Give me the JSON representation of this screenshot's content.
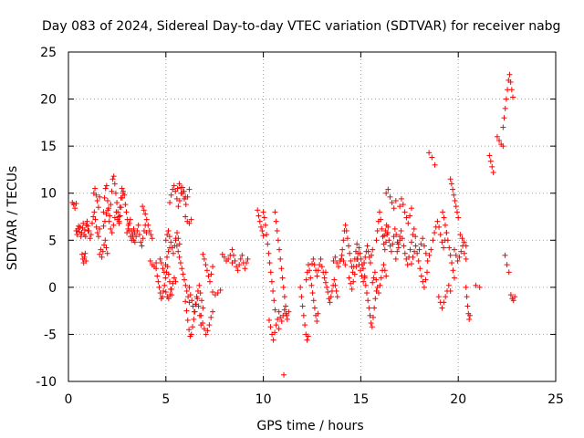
{
  "chart_data": {
    "type": "scatter",
    "title": "Day 083 of 2024, Sidereal Day-to-day VTEC variation (SDTVAR) for receiver nabg",
    "xlabel": "GPS time / hours",
    "ylabel": "SDTVAR / TECUs",
    "xlim": [
      0,
      25
    ],
    "ylim": [
      -10,
      25
    ],
    "xticks": [
      0,
      5,
      10,
      15,
      20,
      25
    ],
    "yticks": [
      -10,
      -5,
      0,
      5,
      10,
      15,
      20,
      25
    ],
    "grid": true,
    "marker": "+",
    "color": "#ff0000",
    "series": [
      {
        "name": "SDTVAR",
        "segments": [
          {
            "t0": 0.2,
            "t1": 0.4,
            "pts": [
              9.0,
              8.8,
              8.4,
              8.9
            ]
          },
          {
            "t0": 0.4,
            "t1": 1.0,
            "pts": [
              6.0,
              5.6,
              6.2,
              6.5,
              5.9,
              6.4,
              5.4,
              5.8,
              6.3,
              6.8,
              5.6,
              6.1,
              5.4,
              6.6,
              7.0,
              6.0
            ]
          },
          {
            "t0": 0.7,
            "t1": 0.9,
            "pts": [
              3.5,
              3.0,
              2.6,
              3.2,
              3.6,
              2.8
            ]
          },
          {
            "t0": 1.0,
            "t1": 1.6,
            "pts": [
              6.5,
              6.0,
              5.2,
              5.6,
              6.8,
              7.5,
              8.0,
              7.2,
              6.4,
              5.8,
              5.4,
              6.2
            ]
          },
          {
            "t0": 1.3,
            "t1": 1.6,
            "pts": [
              10.0,
              10.5,
              9.8,
              9.2,
              8.5,
              9.6
            ]
          },
          {
            "t0": 1.6,
            "t1": 2.0,
            "pts": [
              3.5,
              4.0,
              3.2,
              3.8,
              4.5,
              5.0,
              4.2,
              3.6
            ]
          },
          {
            "t0": 1.8,
            "t1": 2.8,
            "pts": [
              8.0,
              9.5,
              10.5,
              10.8,
              9.2,
              8.4,
              7.6,
              8.8,
              10.2,
              11.5,
              11.8,
              11.0,
              10.0,
              9.0,
              8.0,
              7.5,
              8.5,
              9.5,
              10.5,
              10.0
            ]
          },
          {
            "t0": 1.8,
            "t1": 2.6,
            "pts": [
              6.5,
              7.0,
              7.8,
              8.2,
              7.0,
              6.2,
              5.8,
              6.6,
              7.4,
              8.0,
              7.2,
              6.8
            ]
          },
          {
            "t0": 2.6,
            "t1": 3.4,
            "pts": [
              7.0,
              7.6,
              8.5,
              9.5,
              10.2,
              9.8,
              8.8,
              8.0,
              7.2,
              6.6,
              6.0,
              5.4,
              5.0,
              5.6,
              6.2,
              5.8
            ]
          },
          {
            "t0": 3.0,
            "t1": 4.0,
            "pts": [
              5.8,
              6.2,
              6.8,
              7.2,
              6.0,
              5.4,
              5.0,
              4.8,
              5.4,
              6.0,
              6.6,
              5.6,
              4.8,
              4.4,
              5.2,
              6.0,
              6.6,
              5.8
            ]
          },
          {
            "t0": 3.8,
            "t1": 4.3,
            "pts": [
              8.6,
              8.2,
              7.8,
              7.2,
              6.6,
              6.0,
              5.6,
              5.2
            ]
          },
          {
            "t0": 4.2,
            "t1": 4.5,
            "pts": [
              2.8,
              2.4,
              2.2,
              2.6
            ]
          },
          {
            "t0": 4.5,
            "t1": 5.3,
            "pts": [
              2.0,
              1.2,
              0.6,
              0.0,
              -0.6,
              -1.2,
              -1.0,
              -0.4,
              0.2,
              1.0,
              1.6,
              2.2,
              1.4,
              0.6,
              -0.2,
              -0.8
            ]
          },
          {
            "t0": 4.7,
            "t1": 5.2,
            "pts": [
              3.0,
              2.6,
              2.0,
              1.6,
              2.4,
              3.2,
              3.8,
              4.2
            ]
          },
          {
            "t0": 5.0,
            "t1": 5.7,
            "pts": [
              5.0,
              5.6,
              6.0,
              5.4,
              4.8,
              4.2,
              3.6,
              4.4,
              5.2,
              5.8,
              5.2,
              4.6
            ]
          },
          {
            "t0": 5.0,
            "t1": 5.5,
            "pts": [
              -0.5,
              -1.0,
              -1.2,
              -0.8,
              -0.2,
              0.4,
              1.0,
              0.6
            ]
          },
          {
            "t0": 5.2,
            "t1": 6.0,
            "pts": [
              9.0,
              9.8,
              10.4,
              10.8,
              10.2,
              9.4,
              8.6,
              9.2,
              10.0,
              10.6,
              10.2,
              9.6
            ]
          },
          {
            "t0": 5.5,
            "t1": 6.2,
            "pts": [
              5.0,
              4.4,
              3.8,
              3.2,
              2.6,
              2.0,
              1.4,
              0.8,
              0.2,
              -0.4,
              -1.0,
              -1.6
            ]
          },
          {
            "t0": 5.6,
            "t1": 6.2,
            "pts": [
              10.5,
              11.0,
              10.6,
              10.0,
              9.4,
              8.8,
              9.6,
              10.4
            ]
          },
          {
            "t0": 6.0,
            "t1": 6.3,
            "pts": [
              7.5,
              7.0,
              6.8,
              7.2
            ]
          },
          {
            "t0": 6.0,
            "t1": 6.8,
            "pts": [
              -1.5,
              -2.5,
              -3.5,
              -4.5,
              -5.2,
              -5.0,
              -4.2,
              -3.4,
              -2.6,
              -1.8,
              -1.2,
              -2.0,
              -3.0,
              -4.0
            ]
          },
          {
            "t0": 6.2,
            "t1": 6.9,
            "pts": [
              0.0,
              -0.8,
              -1.4,
              -2.0,
              -2.6,
              -1.8,
              -1.0,
              -0.4,
              0.2,
              -0.6,
              -1.4,
              -2.2
            ]
          },
          {
            "t0": 6.8,
            "t1": 7.4,
            "pts": [
              -3.0,
              -3.8,
              -4.4,
              -5.0,
              -4.6,
              -4.0,
              -3.2,
              -2.6
            ]
          },
          {
            "t0": 6.9,
            "t1": 7.4,
            "pts": [
              3.5,
              3.0,
              2.4,
              1.8,
              1.2,
              0.6,
              1.4,
              2.2
            ]
          },
          {
            "t0": 7.4,
            "t1": 7.8,
            "pts": [
              -0.5,
              -0.8,
              -0.6,
              -0.3
            ]
          },
          {
            "t0": 7.9,
            "t1": 8.4,
            "pts": [
              3.5,
              3.2,
              2.8,
              3.0,
              3.4,
              2.6
            ]
          },
          {
            "t0": 8.4,
            "t1": 9.2,
            "pts": [
              4.0,
              3.4,
              2.8,
              2.2,
              1.8,
              2.4,
              3.0,
              3.4,
              2.6,
              2.0,
              2.6,
              3.0
            ]
          },
          {
            "t0": 9.7,
            "t1": 10.0,
            "pts": [
              8.2,
              7.6,
              7.0,
              6.4,
              6.0,
              5.5
            ]
          },
          {
            "t0": 10.0,
            "t1": 10.6,
            "pts": [
              8.0,
              7.4,
              6.6,
              5.6,
              4.6,
              3.6,
              2.6,
              1.6,
              0.6,
              -0.4,
              -1.4,
              -2.4
            ]
          },
          {
            "t0": 10.3,
            "t1": 10.8,
            "pts": [
              -3.5,
              -4.2,
              -5.0,
              -5.6,
              -4.8,
              -4.0,
              -3.4,
              -4.4
            ]
          },
          {
            "t0": 10.6,
            "t1": 11.2,
            "pts": [
              8.0,
              7.0,
              6.0,
              5.0,
              4.0,
              3.0,
              2.0,
              1.0,
              0.0,
              -1.0,
              -2.0,
              -3.0
            ]
          },
          {
            "t0": 10.8,
            "t1": 11.3,
            "pts": [
              -2.6,
              -3.2,
              -3.6,
              -3.0,
              -2.4,
              -2.8,
              -3.4,
              -2.6
            ]
          },
          {
            "t0": 11.0,
            "t1": 11.1,
            "pts": [
              -9.3
            ]
          },
          {
            "t0": 11.9,
            "t1": 12.3,
            "pts": [
              0.0,
              -1.0,
              -2.0,
              -3.0,
              -4.0,
              -5.0,
              -5.6,
              -5.2
            ]
          },
          {
            "t0": 12.2,
            "t1": 12.8,
            "pts": [
              0.8,
              1.6,
              2.4,
              1.8,
              1.0,
              0.2,
              -0.6,
              -1.4,
              -2.2,
              -3.0,
              -3.6,
              -2.8
            ]
          },
          {
            "t0": 12.5,
            "t1": 13.2,
            "pts": [
              2.5,
              3.0,
              2.4,
              1.8,
              1.2,
              1.8,
              2.4,
              3.0,
              2.2,
              1.6,
              1.0,
              1.6
            ]
          },
          {
            "t0": 13.2,
            "t1": 13.8,
            "pts": [
              0.5,
              0.0,
              -0.5,
              -1.2,
              -1.6,
              -1.0,
              -0.4,
              0.2,
              0.8,
              0.2,
              -0.4,
              -1.0
            ]
          },
          {
            "t0": 13.6,
            "t1": 14.2,
            "pts": [
              2.8,
              3.2,
              2.6,
              2.2,
              2.8,
              3.4,
              2.8,
              2.4
            ]
          },
          {
            "t0": 14.0,
            "t1": 14.8,
            "pts": [
              3.0,
              4.0,
              5.0,
              6.0,
              6.6,
              6.0,
              5.2,
              4.4,
              3.6,
              2.8,
              2.2,
              1.6,
              2.2,
              3.0,
              3.8,
              4.6
            ]
          },
          {
            "t0": 14.4,
            "t1": 15.2,
            "pts": [
              1.0,
              0.4,
              -0.2,
              0.6,
              1.4,
              2.2,
              3.0,
              2.4,
              1.8,
              1.2,
              0.6,
              1.2
            ]
          },
          {
            "t0": 14.8,
            "t1": 15.6,
            "pts": [
              3.0,
              3.6,
              4.2,
              3.6,
              3.0,
              2.4,
              2.0,
              2.6,
              3.2,
              3.8,
              4.4,
              3.8,
              3.2,
              2.6,
              3.4,
              4.0
            ]
          },
          {
            "t0": 15.2,
            "t1": 15.8,
            "pts": [
              1.0,
              0.2,
              -0.6,
              -1.4,
              -2.2,
              -3.0,
              -3.8,
              -4.2,
              -3.2,
              -2.2,
              -1.2,
              -0.4
            ]
          },
          {
            "t0": 15.6,
            "t1": 16.3,
            "pts": [
              0.5,
              1.0,
              1.6,
              0.8,
              0.0,
              -0.6,
              0.2,
              1.0,
              1.8,
              2.4,
              1.8,
              1.2
            ]
          },
          {
            "t0": 15.8,
            "t1": 16.4,
            "pts": [
              5.0,
              6.0,
              7.0,
              8.0,
              7.2,
              6.2,
              5.4,
              4.6,
              4.0,
              4.8,
              5.6,
              6.4
            ]
          },
          {
            "t0": 16.2,
            "t1": 17.0,
            "pts": [
              5.5,
              6.0,
              6.6,
              5.8,
              5.0,
              4.4,
              3.8,
              4.6,
              5.4,
              6.2,
              5.6,
              4.8,
              4.2,
              5.0
            ]
          },
          {
            "t0": 16.3,
            "t1": 16.8,
            "pts": [
              10.0,
              10.4,
              9.6,
              9.0,
              8.4,
              9.2
            ]
          },
          {
            "t0": 16.8,
            "t1": 17.8,
            "pts": [
              3.0,
              3.8,
              4.6,
              5.4,
              6.0,
              5.2,
              4.4,
              3.6,
              3.0,
              2.4,
              3.2,
              4.0,
              4.8,
              5.6,
              6.2,
              5.4
            ]
          },
          {
            "t0": 17.0,
            "t1": 17.6,
            "pts": [
              8.6,
              9.4,
              8.8,
              8.0,
              7.4,
              6.8,
              7.6,
              8.4
            ]
          },
          {
            "t0": 17.6,
            "t1": 18.4,
            "pts": [
              2.5,
              3.2,
              3.8,
              4.4,
              3.6,
              2.8,
              2.0,
              1.2,
              0.6,
              0.0,
              0.8,
              1.6
            ]
          },
          {
            "t0": 18.0,
            "t1": 18.6,
            "pts": [
              4.0,
              4.6,
              5.2,
              4.4,
              3.6,
              2.8,
              3.4,
              4.0
            ]
          },
          {
            "t0": 18.5,
            "t1": 18.8,
            "pts": [
              14.3,
              13.8,
              13.0
            ]
          },
          {
            "t0": 18.7,
            "t1": 19.4,
            "pts": [
              5.0,
              5.8,
              6.4,
              7.0,
              6.4,
              5.6,
              4.8,
              4.2,
              5.0,
              5.8
            ]
          },
          {
            "t0": 19.0,
            "t1": 19.6,
            "pts": [
              -1.0,
              -1.6,
              -2.2,
              -1.6,
              -1.0,
              -0.4,
              0.2,
              -0.4
            ]
          },
          {
            "t0": 19.2,
            "t1": 19.8,
            "pts": [
              8.0,
              7.4,
              6.6,
              5.8,
              5.0,
              4.2,
              3.4,
              2.6,
              1.8,
              1.0
            ]
          },
          {
            "t0": 19.6,
            "t1": 20.0,
            "pts": [
              11.5,
              11.0,
              10.4,
              9.8,
              9.2,
              8.6,
              8.0,
              7.4
            ]
          },
          {
            "t0": 19.8,
            "t1": 20.4,
            "pts": [
              4.0,
              3.4,
              2.8,
              3.2,
              3.8,
              4.4,
              3.6,
              3.0
            ]
          },
          {
            "t0": 20.1,
            "t1": 20.4,
            "pts": [
              5.6,
              5.2,
              4.8,
              4.4
            ]
          },
          {
            "t0": 20.4,
            "t1": 20.6,
            "pts": [
              0.0,
              -1.0,
              -2.0,
              -2.8,
              -3.4,
              -3.0
            ]
          },
          {
            "t0": 20.9,
            "t1": 21.1,
            "pts": [
              0.2,
              0.0
            ]
          },
          {
            "t0": 21.6,
            "t1": 21.8,
            "pts": [
              14.0,
              13.4,
              12.8,
              12.2
            ]
          },
          {
            "t0": 22.0,
            "t1": 22.3,
            "pts": [
              16.0,
              15.6,
              15.2,
              15.0
            ]
          },
          {
            "t0": 22.3,
            "t1": 22.8,
            "pts": [
              17.0,
              18.0,
              19.0,
              20.0,
              21.0,
              22.0,
              22.6,
              21.8,
              21.0,
              20.2
            ]
          },
          {
            "t0": 22.4,
            "t1": 22.6,
            "pts": [
              3.4,
              2.4,
              1.6
            ]
          },
          {
            "t0": 22.7,
            "t1": 22.9,
            "pts": [
              -0.8,
              -1.2,
              -1.4,
              -1.0
            ]
          }
        ]
      }
    ]
  }
}
